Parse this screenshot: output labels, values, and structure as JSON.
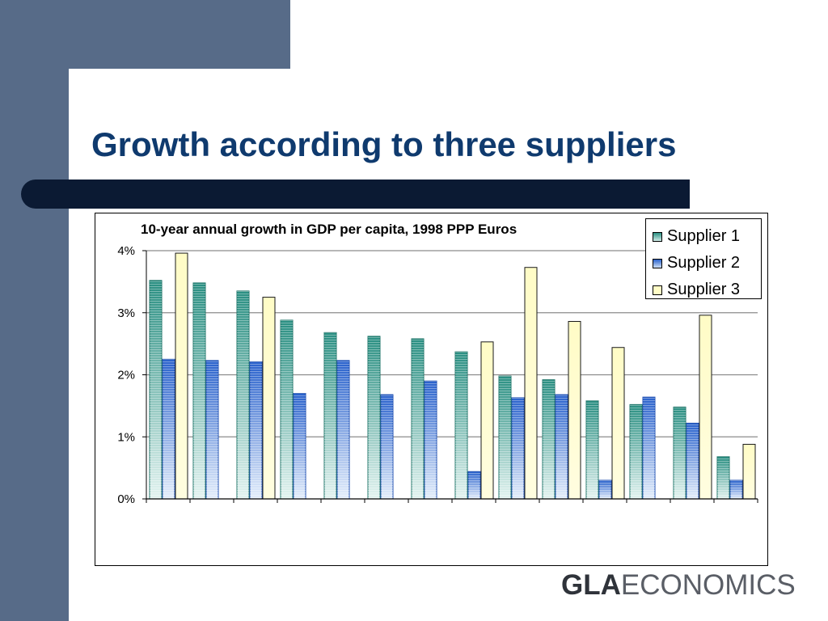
{
  "slide": {
    "title": "Growth according to three suppliers"
  },
  "logo": {
    "bold_part": "GLA",
    "light_part": "ECONOMICS"
  },
  "colors": {
    "background_band": "#576b88",
    "title_text": "#0f3a6e",
    "title_rule": "#0b1a33",
    "supplier1": "#2e9a8c",
    "supplier2": "#2f6fd6",
    "supplier3": "#fffcc8"
  },
  "chart_data": {
    "type": "bar",
    "title": "10-year annual growth in GDP per capita, 1998 PPP Euros",
    "xlabel": "",
    "ylabel": "",
    "ylim": [
      0,
      4
    ],
    "y_ticks": [
      "0%",
      "1%",
      "2%",
      "3%",
      "4%"
    ],
    "grid": true,
    "legend_position": "top-right",
    "categories": [
      "",
      "",
      "",
      "",
      "",
      "",
      "",
      "",
      "",
      "",
      "",
      "",
      "",
      ""
    ],
    "series": [
      {
        "name": "Supplier 1",
        "values": [
          3.52,
          3.48,
          3.35,
          2.88,
          2.68,
          2.62,
          2.58,
          2.37,
          1.98,
          1.92,
          1.58,
          1.52,
          1.48,
          0.68
        ]
      },
      {
        "name": "Supplier 2",
        "values": [
          2.25,
          2.23,
          2.21,
          1.7,
          2.23,
          1.68,
          1.9,
          0.44,
          1.63,
          1.68,
          0.3,
          1.64,
          1.22,
          0.3
        ]
      },
      {
        "name": "Supplier 3",
        "values": [
          3.96,
          null,
          3.25,
          null,
          null,
          null,
          null,
          2.53,
          3.73,
          2.86,
          2.44,
          null,
          2.96,
          0.88
        ]
      }
    ]
  }
}
